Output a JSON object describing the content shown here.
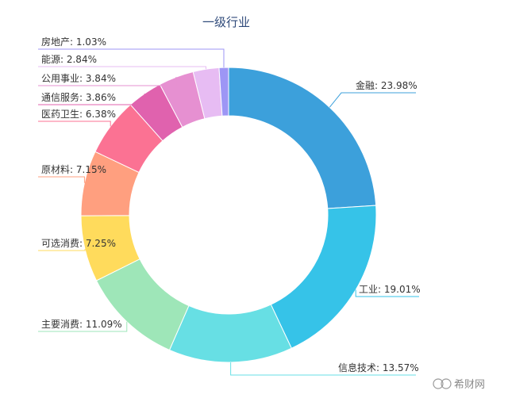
{
  "chart_data": {
    "type": "pie",
    "title": "一级行业",
    "slices": [
      {
        "label": "金融",
        "value": 23.98,
        "display": "金融: 23.98%",
        "color": "#3ca0db"
      },
      {
        "label": "工业",
        "value": 19.01,
        "display": "工业: 19.01%",
        "color": "#36c3e8"
      },
      {
        "label": "信息技术",
        "value": 13.57,
        "display": "信息技术: 13.57%",
        "color": "#67dfe4"
      },
      {
        "label": "主要消费",
        "value": 11.09,
        "display": "主要消费: 11.09%",
        "color": "#9ee6b8"
      },
      {
        "label": "可选消费",
        "value": 7.25,
        "display": "可选消费: 7.25%",
        "color": "#ffdb5c"
      },
      {
        "label": "原材料",
        "value": 7.15,
        "display": "原材料: 7.15%",
        "color": "#ff9f7f"
      },
      {
        "label": "医药卫生",
        "value": 6.38,
        "display": "医药卫生: 6.38%",
        "color": "#fb7293"
      },
      {
        "label": "通信服务",
        "value": 3.86,
        "display": "通信服务: 3.86%",
        "color": "#e062ae"
      },
      {
        "label": "公用事业",
        "value": 3.84,
        "display": "公用事业: 3.84%",
        "color": "#e690d1"
      },
      {
        "label": "能源",
        "value": 2.84,
        "display": "能源: 2.84%",
        "color": "#e7bcf3"
      },
      {
        "label": "房地产",
        "value": 1.03,
        "display": "房地产: 1.03%",
        "color": "#9d96f5"
      }
    ]
  },
  "watermark": "希财网"
}
